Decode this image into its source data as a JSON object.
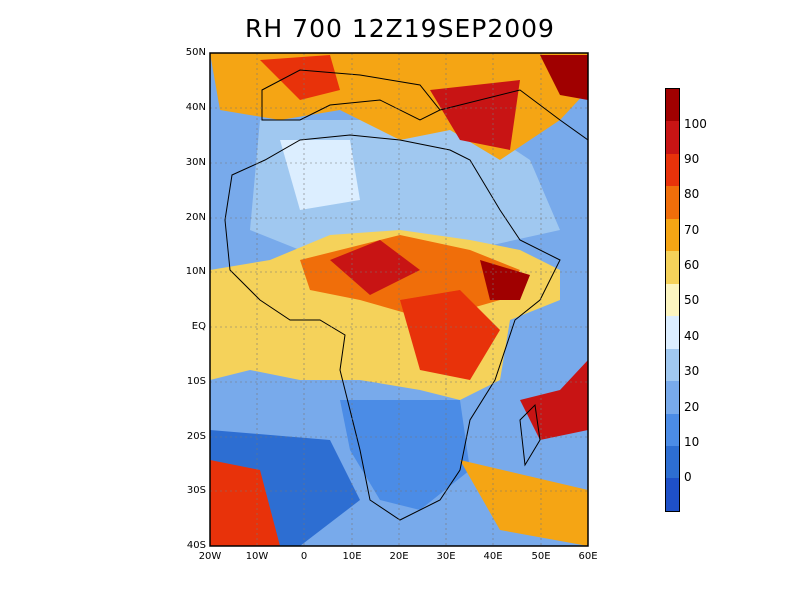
{
  "title": "RH 700 12Z19SEP2009",
  "map": {
    "lat_labels": [
      "50N",
      "40N",
      "30N",
      "20N",
      "10N",
      "EQ",
      "10S",
      "20S",
      "30S",
      "40S"
    ],
    "lon_labels": [
      "20W",
      "10W",
      "0",
      "10E",
      "20E",
      "30E",
      "40E",
      "50E",
      "60E"
    ]
  },
  "colorbar": {
    "labels": [
      "100",
      "90",
      "80",
      "70",
      "60",
      "50",
      "40",
      "30",
      "20",
      "10",
      "0"
    ],
    "colors_top_to_bottom": [
      "#a00000",
      "#c81414",
      "#e8320a",
      "#f06e0a",
      "#f5a514",
      "#f5d25a",
      "#fcf5c0",
      "#dceeff",
      "#a0c8f0",
      "#78aaeb",
      "#4b8ce6",
      "#2d6ed2",
      "#1e50c8"
    ]
  }
}
